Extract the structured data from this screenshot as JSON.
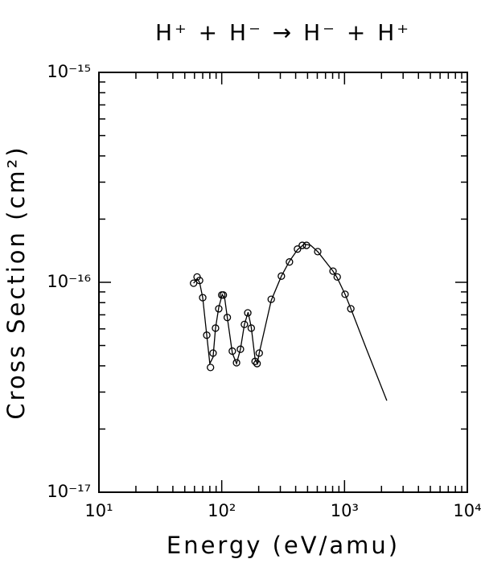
{
  "chart_data": {
    "type": "scatter",
    "title": "H⁺ + H⁻ → H⁻ + H⁺",
    "x_label": "Energy (eV/amu)",
    "y_label": "Cross Section (cm²)",
    "log_x": true,
    "log_y": true,
    "xlim": [
      10,
      10000
    ],
    "ylim": [
      1e-17,
      1e-15
    ],
    "xticks": [
      {
        "value": 10,
        "label": "10¹"
      },
      {
        "value": 100,
        "label": "10²"
      },
      {
        "value": 1000,
        "label": "10³"
      },
      {
        "value": 10000,
        "label": "10⁴"
      }
    ],
    "yticks": [
      {
        "value": 1e-17,
        "label": "10⁻¹⁷"
      },
      {
        "value": 1e-16,
        "label": "10⁻¹⁶"
      },
      {
        "value": 1e-15,
        "label": "10⁻¹⁵"
      }
    ],
    "series": [
      {
        "kind": "points",
        "color": "#000000",
        "x": [
          59,
          63,
          66,
          70,
          75.5,
          81,
          85,
          89,
          94.6,
          100,
          103,
          111,
          122,
          132,
          142,
          153,
          163,
          174,
          187,
          194,
          202,
          253,
          306,
          356,
          414,
          453,
          490,
          605,
          806,
          872,
          1010,
          1125
        ],
        "values": [
          9.9e-17,
          1.06e-16,
          1.02e-16,
          8.45e-17,
          5.6e-17,
          3.93e-17,
          4.6e-17,
          6.05e-17,
          7.48e-17,
          8.7e-17,
          8.7e-17,
          6.8e-17,
          4.7e-17,
          4.14e-17,
          4.8e-17,
          6.3e-17,
          7.15e-17,
          6.05e-17,
          4.2e-17,
          4.1e-17,
          4.6e-17,
          8.3e-17,
          1.07e-16,
          1.25e-16,
          1.44e-16,
          1.5e-16,
          1.5e-16,
          1.4e-16,
          1.13e-16,
          1.06e-16,
          8.77e-17,
          7.48e-17
        ]
      },
      {
        "kind": "line",
        "color": "#000000",
        "x": [
          59,
          63,
          66,
          70,
          75.5,
          80,
          85,
          89,
          94.6,
          101,
          106,
          111,
          122,
          132,
          142,
          153,
          164,
          174,
          187,
          195,
          202,
          253,
          306,
          356,
          414,
          470,
          530,
          605,
          806,
          872,
          1010,
          1125,
          1500,
          2210
        ],
        "values": [
          9.9e-17,
          1.04e-16,
          1e-16,
          8.45e-17,
          5.6e-17,
          4.1e-17,
          4.4e-17,
          6.05e-17,
          7.6e-17,
          8.75e-17,
          8.3e-17,
          6.8e-17,
          4.6e-17,
          4.1e-17,
          4.8e-17,
          6.3e-17,
          7.2e-17,
          6.1e-17,
          4.3e-17,
          4.1e-17,
          4.6e-17,
          8.2e-17,
          1.07e-16,
          1.26e-16,
          1.43e-16,
          1.52e-16,
          1.5e-16,
          1.4e-16,
          1.13e-16,
          1.05e-16,
          8.77e-17,
          7.5e-17,
          4.85e-17,
          2.73e-17
        ]
      }
    ]
  }
}
